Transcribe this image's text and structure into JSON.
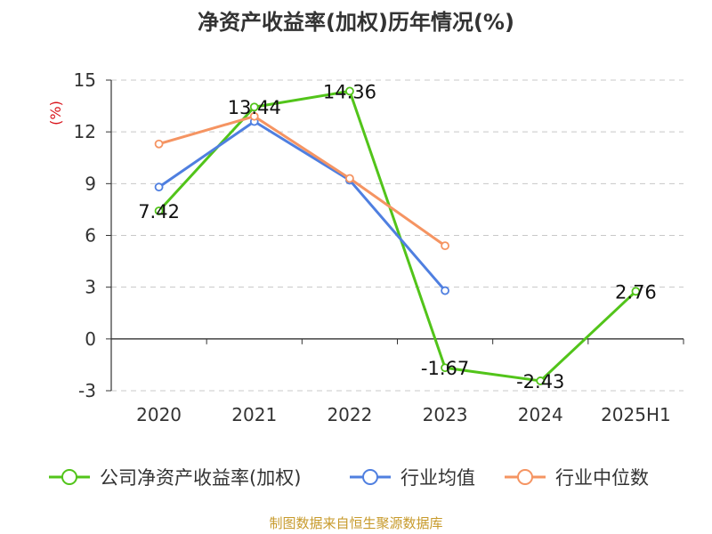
{
  "chart_data": {
    "type": "line",
    "title": "净资产收益率(加权)历年情况(%)",
    "ylabel": "(%)",
    "categories": [
      "2020",
      "2021",
      "2022",
      "2023",
      "2024",
      "2025H1"
    ],
    "ylim": [
      -3,
      15
    ],
    "yticks": [
      15,
      12,
      9,
      6,
      3,
      0,
      -3
    ],
    "grid": true,
    "legend_position": "bottom",
    "series": [
      {
        "name": "公司净资产收益率(加权)",
        "color": "#52c41a",
        "values": [
          7.42,
          13.44,
          14.36,
          -1.67,
          -2.43,
          2.76
        ],
        "labels": [
          "7.42",
          "13.44",
          "14.36",
          "-1.67",
          "-2.43",
          "2.76"
        ]
      },
      {
        "name": "行业均值",
        "color": "#4f7fe0",
        "values": [
          8.8,
          12.6,
          9.2,
          2.8,
          null,
          null
        ]
      },
      {
        "name": "行业中位数",
        "color": "#f59462",
        "values": [
          11.3,
          12.9,
          9.3,
          5.4,
          null,
          null
        ]
      }
    ]
  },
  "source": "制图数据来自恒生聚源数据库"
}
